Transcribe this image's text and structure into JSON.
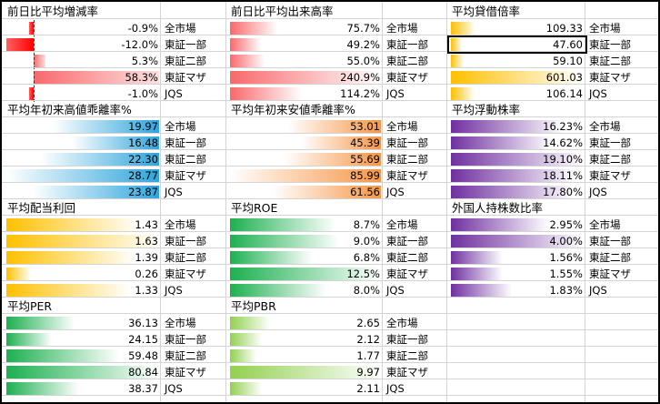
{
  "labels": [
    "全市場",
    "東証一部",
    "東証二部",
    "東証マザ",
    "JQS"
  ],
  "panels": [
    {
      "id": "p1",
      "title": "前日比平均増減率",
      "values": [
        "-0.9%",
        "-12.0%",
        "5.3%",
        "58.3%",
        "-1.0%"
      ],
      "nums": [
        -0.9,
        -12.0,
        5.3,
        58.3,
        -1.0
      ],
      "color": "#f8696b"
    },
    {
      "id": "p2",
      "title": "前日比平均出来高率",
      "values": [
        "75.7%",
        "49.2%",
        "55.0%",
        "240.9%",
        "114.2%"
      ],
      "nums": [
        75.7,
        49.2,
        55.0,
        240.9,
        114.2
      ],
      "color": "#f8696b"
    },
    {
      "id": "p3",
      "title": "平均貸借倍率",
      "values": [
        "109.33",
        "47.60",
        "59.10",
        "601.03",
        "106.14"
      ],
      "nums": [
        109.33,
        47.6,
        59.1,
        601.03,
        106.14
      ],
      "color": "#ffc000"
    },
    {
      "id": "p4",
      "title": "平均年初来高値乖離率%",
      "values": [
        "19.97",
        "16.48",
        "22.30",
        "28.77",
        "23.87"
      ],
      "nums": [
        19.97,
        16.48,
        22.3,
        28.77,
        23.87
      ],
      "color": "#2ea5dd"
    },
    {
      "id": "p5",
      "title": "平均年初来安値乖離率%",
      "values": [
        "53.01",
        "45.39",
        "55.69",
        "85.99",
        "61.56"
      ],
      "nums": [
        53.01,
        45.39,
        55.69,
        85.99,
        61.56
      ],
      "color": "#f79646"
    },
    {
      "id": "p6",
      "title": "平均浮動株率",
      "values": [
        "16.23%",
        "14.62%",
        "19.10%",
        "18.11%",
        "17.80%"
      ],
      "nums": [
        16.23,
        14.62,
        19.1,
        18.11,
        17.8
      ],
      "color": "#7030a0"
    },
    {
      "id": "p7",
      "title": "平均配当利回",
      "values": [
        "1.43",
        "1.63",
        "1.39",
        "0.26",
        "1.33"
      ],
      "nums": [
        1.43,
        1.63,
        1.39,
        0.26,
        1.33
      ],
      "color": "#ffc000"
    },
    {
      "id": "p8",
      "title": "平均ROE",
      "values": [
        "8.7%",
        "9.0%",
        "6.8%",
        "12.5%",
        "8.0%"
      ],
      "nums": [
        8.7,
        9.0,
        6.8,
        12.5,
        8.0
      ],
      "color": "#1db050"
    },
    {
      "id": "p9",
      "title": "外国人持株数比率",
      "values": [
        "2.95%",
        "4.00%",
        "1.56%",
        "1.55%",
        "1.83%"
      ],
      "nums": [
        2.95,
        4.0,
        1.56,
        1.55,
        1.83
      ],
      "color": "#7030a0"
    },
    {
      "id": "p10",
      "title": "平均PER",
      "values": [
        "36.13",
        "24.15",
        "59.48",
        "80.84",
        "38.37"
      ],
      "nums": [
        36.13,
        24.15,
        59.48,
        80.84,
        38.37
      ],
      "color": "#1db050"
    },
    {
      "id": "p11",
      "title": "平均PBR",
      "values": [
        "2.65",
        "2.12",
        "1.77",
        "9.97",
        "2.11"
      ],
      "nums": [
        2.65,
        2.12,
        1.77,
        9.97,
        2.11
      ],
      "color": "#92d050"
    }
  ]
}
